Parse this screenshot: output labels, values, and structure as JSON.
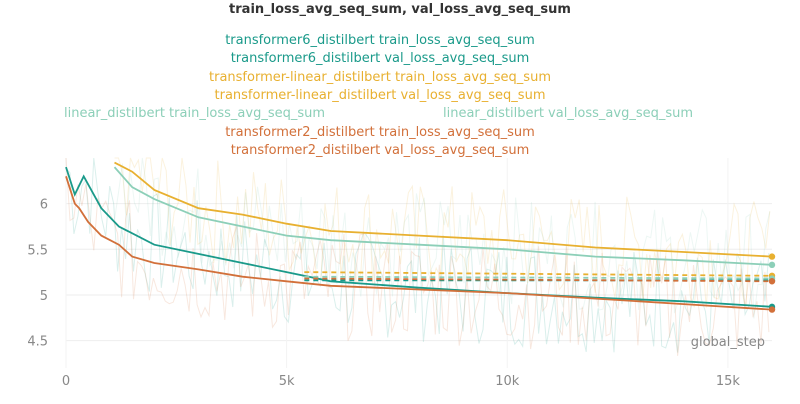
{
  "chart_data": {
    "type": "line",
    "title": "train_loss_avg_seq_sum, val_loss_avg_seq_sum",
    "xlabel": "global_step",
    "ylabel": "",
    "xlim": [
      0,
      16000
    ],
    "ylim": [
      4.2,
      6.5
    ],
    "x_ticks": [
      0,
      5000,
      10000,
      15000
    ],
    "x_tick_labels": [
      "0",
      "5k",
      "10k",
      "15k"
    ],
    "y_ticks": [
      4.5,
      5,
      5.5,
      6
    ],
    "y_tick_labels": [
      "4.5",
      "5",
      "5.5",
      "6"
    ],
    "grid": true,
    "legend_position": "top",
    "series": [
      {
        "name": "transformer6_distilbert train_loss_avg_seq_sum",
        "color": "#1a9a8a",
        "dashed": false,
        "x": [
          0,
          200,
          400,
          800,
          1200,
          2000,
          3000,
          4000,
          5000,
          6000,
          8000,
          10000,
          12000,
          14000,
          16000
        ],
        "y": [
          6.4,
          6.1,
          6.3,
          5.95,
          5.75,
          5.55,
          5.45,
          5.35,
          5.25,
          5.15,
          5.08,
          5.02,
          4.97,
          4.93,
          4.87
        ]
      },
      {
        "name": "transformer6_distilbert val_loss_avg_seq_sum",
        "color": "#1a9a8a",
        "dashed": true,
        "x": [
          5400,
          16000
        ],
        "y": [
          5.16,
          5.16
        ]
      },
      {
        "name": "transformer-linear_distilbert train_loss_avg_seq_sum",
        "color": "#e8b030",
        "dashed": false,
        "x": [
          1100,
          1500,
          2000,
          3000,
          4000,
          5000,
          6000,
          8000,
          10000,
          12000,
          14000,
          16000
        ],
        "y": [
          6.45,
          6.35,
          6.15,
          5.95,
          5.88,
          5.78,
          5.7,
          5.65,
          5.6,
          5.52,
          5.47,
          5.42
        ]
      },
      {
        "name": "transformer-linear_distilbert val_loss_avg_seq_sum",
        "color": "#e8b030",
        "dashed": true,
        "x": [
          5400,
          16000
        ],
        "y": [
          5.25,
          5.21
        ]
      },
      {
        "name": "linear_distilbert train_loss_avg_seq_sum",
        "color": "#8ccfb8",
        "dashed": false,
        "x": [
          1100,
          1500,
          2000,
          3000,
          4000,
          5000,
          6000,
          8000,
          10000,
          12000,
          14000,
          16000
        ],
        "y": [
          6.4,
          6.18,
          6.05,
          5.85,
          5.75,
          5.65,
          5.6,
          5.55,
          5.5,
          5.42,
          5.38,
          5.33
        ]
      },
      {
        "name": "linear_distilbert val_loss_avg_seq_sum",
        "color": "#8ccfb8",
        "dashed": true,
        "x": [
          5400,
          16000
        ],
        "y": [
          5.2,
          5.18
        ]
      },
      {
        "name": "transformer2_distilbert train_loss_avg_seq_sum",
        "color": "#d2703a",
        "dashed": false,
        "x": [
          0,
          200,
          300,
          500,
          800,
          1200,
          1500,
          2000,
          3000,
          4000,
          5000,
          6000,
          8000,
          10000,
          12000,
          14000,
          16000
        ],
        "y": [
          6.3,
          6.0,
          5.95,
          5.8,
          5.65,
          5.55,
          5.42,
          5.35,
          5.28,
          5.2,
          5.15,
          5.1,
          5.06,
          5.02,
          4.96,
          4.9,
          4.84
        ]
      },
      {
        "name": "transformer2_distilbert val_loss_avg_seq_sum",
        "color": "#d2703a",
        "dashed": true,
        "x": [
          5400,
          16000
        ],
        "y": [
          5.18,
          5.15
        ]
      }
    ]
  }
}
